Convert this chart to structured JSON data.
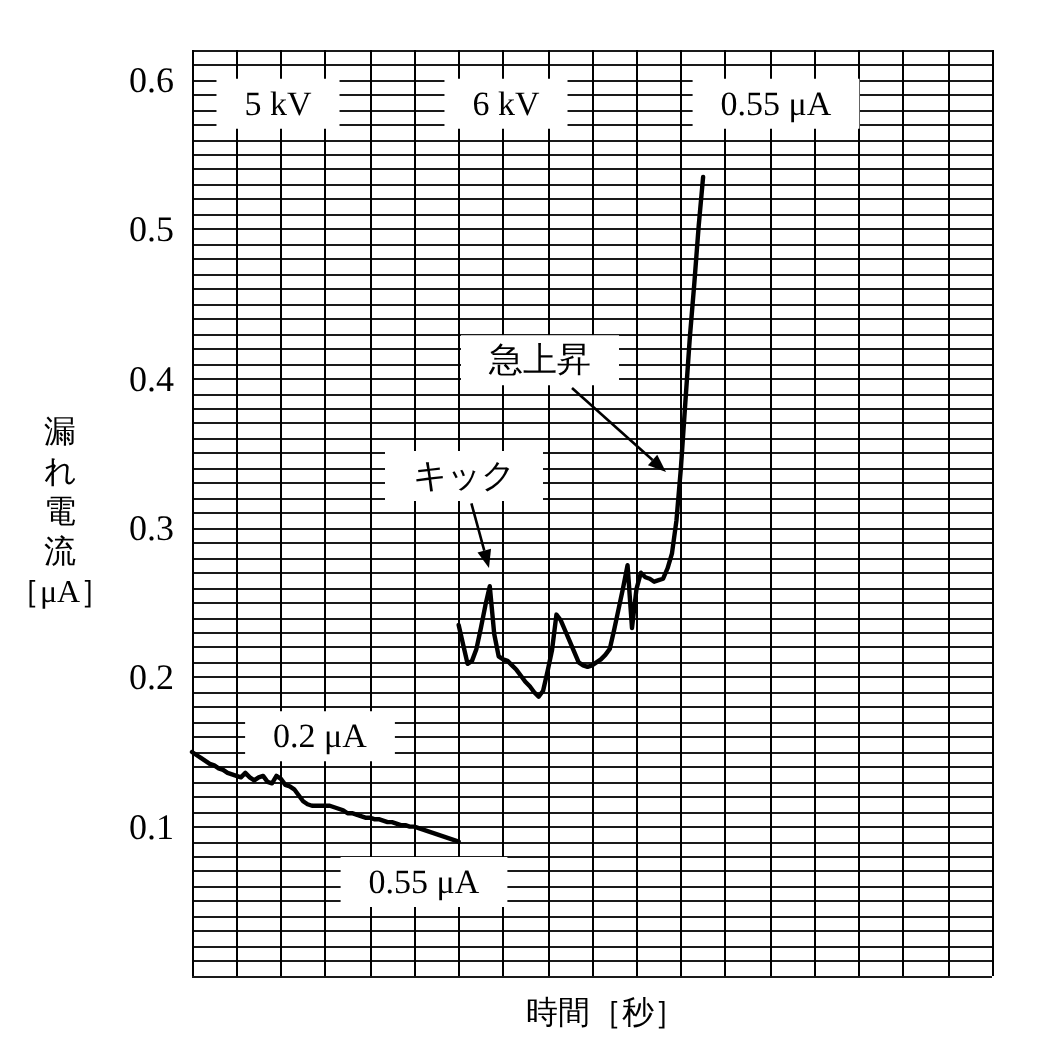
{
  "chart_data": {
    "type": "line",
    "xlabel": "時間［秒］",
    "ylabel": "漏れ電流［μA］",
    "annotations": [
      "5 kV",
      "6 kV",
      "0.55 μA",
      "急上昇",
      "キック",
      "0.2 μA",
      "0.55 μA"
    ],
    "categories": [
      null,
      null,
      null,
      null,
      null,
      null,
      null,
      null,
      null,
      null,
      null,
      null,
      null,
      null,
      null,
      null,
      null,
      null,
      null,
      null,
      null,
      null,
      null,
      null,
      null,
      null,
      null,
      null,
      null,
      null,
      null,
      null,
      null,
      null,
      null,
      null,
      null,
      null,
      null,
      null,
      null,
      null,
      null,
      null,
      null,
      null,
      null,
      null,
      null,
      null,
      null,
      null,
      null,
      null,
      null,
      null,
      null,
      null,
      null,
      null,
      null,
      null,
      null,
      null,
      null,
      null,
      null,
      null,
      null,
      null,
      null,
      null,
      null,
      null,
      null,
      null,
      null,
      null,
      null,
      null,
      null,
      null,
      null,
      null,
      null,
      null,
      null,
      null,
      null,
      null,
      null,
      null,
      null,
      null,
      null,
      null,
      null,
      null,
      null,
      null,
      null,
      null,
      null,
      null,
      null,
      null,
      null,
      null,
      null,
      null,
      null,
      null,
      null,
      null,
      null,
      null,
      null,
      null,
      null,
      null,
      null,
      null,
      null,
      null,
      null,
      null,
      null,
      null,
      null,
      null,
      null,
      null,
      null,
      null,
      null,
      null,
      null,
      null,
      null,
      null,
      null,
      null,
      null,
      null,
      null,
      null,
      null,
      null,
      null,
      null,
      null,
      null,
      null,
      null,
      null,
      null,
      null,
      null,
      null,
      null,
      null,
      null,
      null,
      null,
      null,
      null,
      null,
      null,
      null,
      null,
      null,
      null,
      null,
      null,
      null,
      null,
      null,
      null,
      null,
      null,
      null
    ],
    "series": [
      {
        "color": "#000000",
        "values": [
          0.15,
          0.148,
          0.146,
          0.144,
          0.142,
          0.141,
          0.139,
          0.138,
          0.136,
          0.135,
          0.134,
          0.133,
          0.136,
          0.133,
          0.131,
          0.133,
          0.134,
          0.13,
          0.129,
          0.134,
          0.132,
          0.128,
          0.127,
          0.125,
          0.121,
          0.117,
          0.115,
          0.114,
          0.114,
          0.114,
          0.114,
          0.114,
          0.113,
          0.112,
          0.111,
          0.109,
          0.109,
          0.108,
          0.107,
          0.106,
          0.106,
          0.105,
          0.105,
          0.104,
          0.103,
          0.103,
          0.102,
          0.101,
          0.101,
          0.1,
          0.1,
          0.099,
          0.098,
          0.097,
          0.096,
          0.095,
          0.094,
          0.093,
          0.092,
          0.091,
          0.09,
          null,
          null,
          null,
          null,
          null,
          null,
          null,
          null,
          null,
          null,
          null,
          null,
          null,
          null,
          null,
          null,
          null,
          null,
          null,
          null,
          null,
          null,
          null,
          null,
          null,
          null,
          null,
          null,
          null,
          null,
          null,
          null,
          null,
          null,
          null,
          null,
          null,
          null,
          null,
          null,
          null,
          null,
          null,
          null,
          null,
          null,
          null,
          null,
          null,
          null,
          null,
          null,
          null,
          null,
          null,
          null,
          null,
          null,
          null,
          null,
          null,
          null,
          null,
          null,
          null,
          null,
          null,
          null,
          null,
          null,
          null,
          null,
          null,
          null,
          null,
          null,
          null,
          null,
          null,
          null,
          null,
          null,
          null,
          null,
          null,
          null,
          null,
          null,
          null,
          null,
          null,
          null,
          null,
          null,
          null,
          null,
          null,
          null,
          null,
          null,
          null,
          null,
          null,
          null,
          null,
          null,
          null,
          null,
          null,
          null,
          null,
          null,
          null,
          null,
          null,
          null,
          null,
          null,
          null,
          null
        ]
      },
      {
        "color": "#000000",
        "values": [
          null,
          null,
          null,
          null,
          null,
          null,
          null,
          null,
          null,
          null,
          null,
          null,
          null,
          null,
          null,
          null,
          null,
          null,
          null,
          null,
          null,
          null,
          null,
          null,
          null,
          null,
          null,
          null,
          null,
          null,
          null,
          null,
          null,
          null,
          null,
          null,
          null,
          null,
          null,
          null,
          null,
          null,
          null,
          null,
          null,
          null,
          null,
          null,
          null,
          null,
          null,
          null,
          null,
          null,
          null,
          null,
          null,
          null,
          null,
          null,
          0.235,
          0.222,
          0.209,
          0.211,
          0.219,
          0.233,
          0.248,
          0.261,
          0.229,
          0.214,
          0.212,
          0.211,
          0.208,
          0.205,
          0.201,
          0.197,
          0.194,
          0.19,
          0.187,
          0.191,
          0.204,
          0.218,
          0.242,
          0.238,
          0.231,
          0.224,
          0.217,
          0.21,
          0.208,
          0.207,
          0.208,
          0.21,
          0.212,
          0.215,
          0.219,
          0.232,
          0.246,
          0.26,
          0.275,
          0.233,
          0.259,
          0.27,
          0.267,
          0.266,
          0.264,
          0.265,
          0.266,
          0.273,
          0.283,
          0.305,
          0.34,
          0.384,
          0.427,
          0.463,
          0.502,
          0.535,
          null,
          null,
          null,
          null,
          null,
          null,
          null,
          null,
          null,
          null,
          null,
          null,
          null,
          null,
          null,
          null,
          null,
          null,
          null,
          null,
          null,
          null,
          null,
          null,
          null,
          null,
          null,
          null,
          null,
          null,
          null,
          null,
          null,
          null,
          null,
          null,
          null,
          null,
          null,
          null,
          null,
          null,
          null,
          null,
          null,
          null,
          null,
          null,
          null,
          null,
          null,
          null,
          null,
          null,
          null,
          null,
          null,
          null,
          null,
          null,
          null,
          null,
          null,
          null,
          null
        ]
      }
    ],
    "ylim": [
      0,
      0.62
    ],
    "yticks": [
      0.1,
      0.2,
      0.3,
      0.4,
      0.5,
      0.6
    ],
    "grid": true,
    "tick_labels": "y",
    "line_style": "solid"
  }
}
